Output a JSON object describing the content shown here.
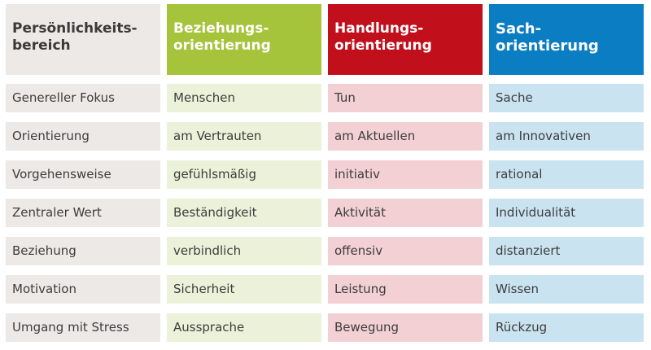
{
  "colors": {
    "header_neutral": "#ede9e6",
    "header_relationship": "#a5c33b",
    "header_action": "#c1101c",
    "header_fact": "#0b7dc3",
    "cell_neutral": "#ede9e6",
    "cell_relationship": "#ebf2d9",
    "cell_action": "#f3d0d3",
    "cell_fact": "#cae3f1"
  },
  "header": [
    {
      "line1": "Persönlichkeits-",
      "line2": "bereich"
    },
    {
      "line1": "Beziehungs-",
      "line2": "orientierung"
    },
    {
      "line1": "Handlungs-",
      "line2": "orientierung"
    },
    {
      "line1": "Sach-",
      "line2": "orientierung"
    }
  ],
  "rows": [
    [
      "Genereller Fokus",
      "Menschen",
      "Tun",
      "Sache"
    ],
    [
      "Orientierung",
      "am Vertrauten",
      "am Aktuellen",
      "am Innovativen"
    ],
    [
      "Vorgehensweise",
      "gefühlsmäßig",
      "initiativ",
      "rational"
    ],
    [
      "Zentraler Wert",
      "Beständigkeit",
      "Aktivität",
      "Individualität"
    ],
    [
      "Beziehung",
      "verbindlich",
      "offensiv",
      "distanziert"
    ],
    [
      "Motivation",
      "Sicherheit",
      "Leistung",
      "Wissen"
    ],
    [
      "Umgang mit Stress",
      "Aussprache",
      "Bewegung",
      "Rückzug"
    ]
  ]
}
